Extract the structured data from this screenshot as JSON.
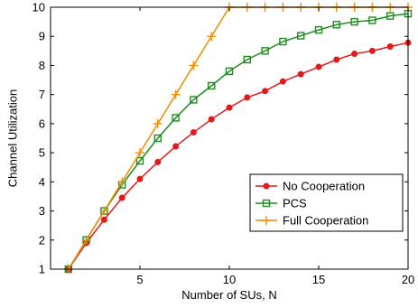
{
  "chart_data": {
    "type": "line",
    "xlabel": "Number of SUs, N",
    "ylabel": "Channel Utilization",
    "xlim": [
      0,
      20
    ],
    "ylim": [
      1,
      10
    ],
    "xticks": [
      5,
      10,
      15,
      20
    ],
    "yticks": [
      1,
      2,
      3,
      4,
      5,
      6,
      7,
      8,
      9,
      10
    ],
    "grid": false,
    "legend_position": "bottom-right",
    "x": [
      1,
      2,
      3,
      4,
      5,
      6,
      7,
      8,
      9,
      10,
      11,
      12,
      13,
      14,
      15,
      16,
      17,
      18,
      19,
      20
    ],
    "series": [
      {
        "name": "No Cooperation",
        "color": "#e31a1c",
        "marker": "dot",
        "values": [
          1.0,
          1.9,
          2.7,
          3.45,
          4.1,
          4.68,
          5.22,
          5.7,
          6.15,
          6.55,
          6.9,
          7.12,
          7.45,
          7.7,
          7.95,
          8.2,
          8.4,
          8.5,
          8.65,
          8.78
        ]
      },
      {
        "name": "PCS",
        "color": "#1e8c1e",
        "marker": "square",
        "values": [
          1.0,
          2.0,
          3.0,
          3.9,
          4.72,
          5.5,
          6.2,
          6.82,
          7.3,
          7.8,
          8.2,
          8.5,
          8.82,
          9.02,
          9.22,
          9.4,
          9.5,
          9.55,
          9.7,
          9.78
        ]
      },
      {
        "name": "Full Cooperation",
        "color": "#f28c00",
        "marker": "plus",
        "values": [
          1.0,
          2.0,
          3.0,
          4.0,
          5.0,
          6.0,
          7.0,
          8.0,
          9.0,
          10.0,
          10.0,
          10.0,
          10.0,
          10.0,
          10.0,
          10.0,
          10.0,
          10.0,
          10.0,
          10.0
        ]
      }
    ]
  }
}
